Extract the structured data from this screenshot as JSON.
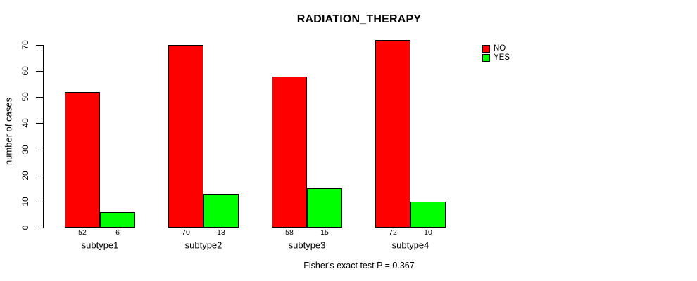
{
  "chart_data": {
    "type": "bar",
    "title": "RADIATION_THERAPY",
    "ylabel": "number of cases",
    "xlabel": "",
    "categories": [
      "subtype1",
      "subtype2",
      "subtype3",
      "subtype4"
    ],
    "series": [
      {
        "name": "NO",
        "color": "#ff0000",
        "values": [
          52,
          70,
          58,
          72
        ]
      },
      {
        "name": "YES",
        "color": "#00ff00",
        "values": [
          6,
          13,
          15,
          10
        ]
      }
    ],
    "show_value_labels": true,
    "yticks": [
      0,
      10,
      20,
      30,
      40,
      50,
      60,
      70
    ],
    "ylim": [
      0,
      70
    ],
    "grid": false,
    "legend": {
      "position": "right-of-plot-top"
    },
    "footer": "Fisher's exact test P = 0.367",
    "colors": {
      "background": "#ffffff",
      "axis": "#000000",
      "text": "#000000"
    }
  }
}
